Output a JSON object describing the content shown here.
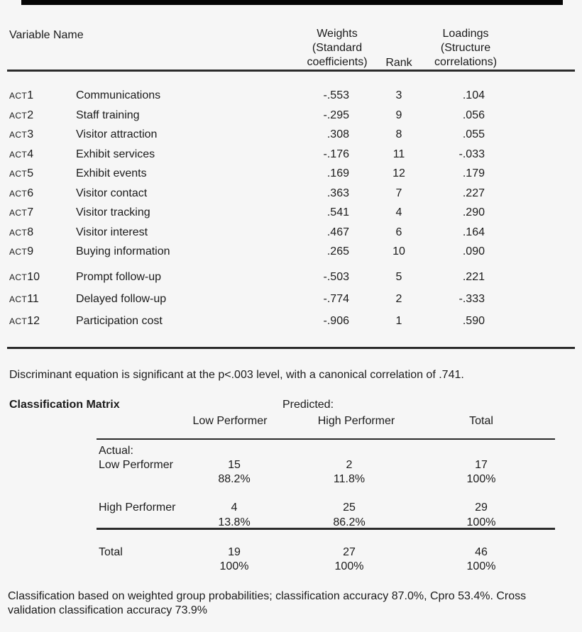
{
  "page": {
    "background": "#f6f6f6",
    "text_color": "#1b1b1b",
    "rule_color": "#2b2b2b",
    "top_bar_color": "#060606"
  },
  "variables_table": {
    "headers": {
      "variable_name": "Variable Name",
      "weights_lines": [
        "Weights",
        "(Standard",
        "coefficients)"
      ],
      "rank": "Rank",
      "loadings_lines": [
        "Loadings",
        "(Structure",
        "correlations)"
      ]
    },
    "rows": [
      {
        "id": "ACT1",
        "label": "Communications",
        "weight": "-.553",
        "rank": "3",
        "loading": ".104"
      },
      {
        "id": "ACT2",
        "label": "Staff training",
        "weight": "-.295",
        "rank": "9",
        "loading": ".056"
      },
      {
        "id": "ACT3",
        "label": "Visitor attraction",
        "weight": ".308",
        "rank": "8",
        "loading": ".055"
      },
      {
        "id": "ACT4",
        "label": "Exhibit services",
        "weight": "-.176",
        "rank": "11",
        "loading": "-.033"
      },
      {
        "id": "ACT5",
        "label": "Exhibit events",
        "weight": ".169",
        "rank": "12",
        "loading": ".179"
      },
      {
        "id": "ACT6",
        "label": "Visitor contact",
        "weight": ".363",
        "rank": "7",
        "loading": ".227"
      },
      {
        "id": "ACT7",
        "label": "Visitor tracking",
        "weight": ".541",
        "rank": "4",
        "loading": ".290"
      },
      {
        "id": "ACT8",
        "label": "Visitor interest",
        "weight": ".467",
        "rank": "6",
        "loading": ".164"
      },
      {
        "id": "ACT9",
        "label": "Buying information",
        "weight": ".265",
        "rank": "10",
        "loading": ".090"
      },
      {
        "id": "ACT10",
        "label": "Prompt follow-up",
        "weight": "-.503",
        "rank": "5",
        "loading": ".221"
      },
      {
        "id": "ACT11",
        "label": "Delayed follow-up",
        "weight": "-.774",
        "rank": "2",
        "loading": "-.333"
      },
      {
        "id": "ACT12",
        "label": "Participation cost",
        "weight": "-.906",
        "rank": "1",
        "loading": ".590"
      }
    ]
  },
  "significance_note": "Discriminant equation is significant at the p<.003 level, with a canonical correlation of .741.",
  "classification_matrix": {
    "title": "Classification Matrix",
    "predicted_label": "Predicted:",
    "column_headers": [
      "Low Performer",
      "High Performer",
      "Total"
    ],
    "actual_label": "Actual:",
    "rows": [
      {
        "label": "Low Performer",
        "counts": [
          "15",
          "2",
          "17"
        ],
        "percents": [
          "88.2%",
          "11.8%",
          "100%"
        ]
      },
      {
        "label": "High Performer",
        "counts": [
          "4",
          "25",
          "29"
        ],
        "percents": [
          "13.8%",
          "86.2%",
          "100%"
        ]
      },
      {
        "label": "Total",
        "counts": [
          "19",
          "27",
          "46"
        ],
        "percents": [
          "100%",
          "100%",
          "100%"
        ]
      }
    ]
  },
  "footnote": "Classification based on weighted group probabilities; classification accuracy 87.0%, Cpro 53.4%. Cross validation classification accuracy 73.9%"
}
